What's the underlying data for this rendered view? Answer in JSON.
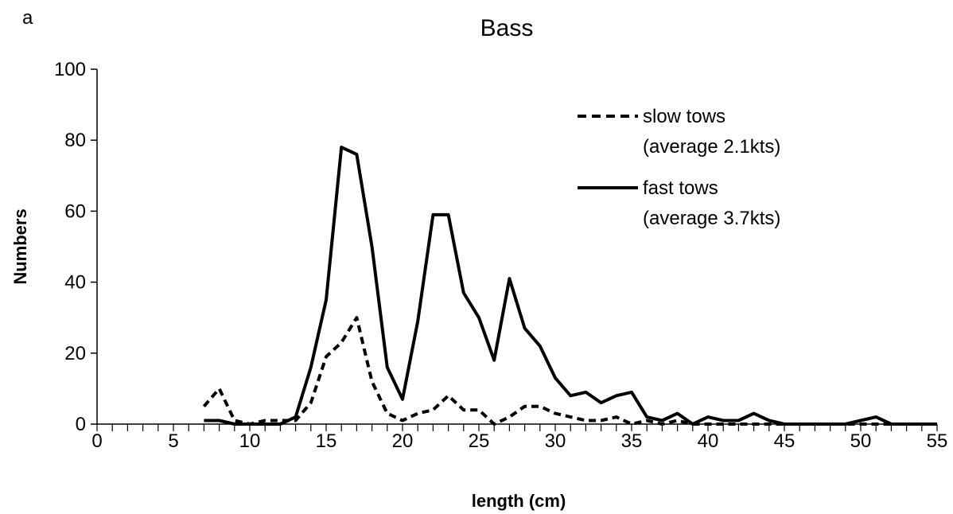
{
  "panel_label": "a",
  "chart_data": {
    "type": "line",
    "title": "Bass",
    "xlabel": "length (cm)",
    "ylabel": "Numbers",
    "xlim": [
      0,
      55
    ],
    "ylim": [
      0,
      100
    ],
    "x_ticks": [
      0,
      5,
      10,
      15,
      20,
      25,
      30,
      35,
      40,
      45,
      50,
      55
    ],
    "y_ticks": [
      0,
      20,
      40,
      60,
      80,
      100
    ],
    "grid": false,
    "legend_position": "top-right",
    "x": [
      7,
      8,
      9,
      10,
      11,
      12,
      13,
      14,
      15,
      16,
      17,
      18,
      19,
      20,
      21,
      22,
      23,
      24,
      25,
      26,
      27,
      28,
      29,
      30,
      31,
      32,
      33,
      34,
      35,
      36,
      37,
      38,
      39,
      40,
      41,
      42,
      43,
      44,
      45,
      46,
      47,
      48,
      49,
      50,
      51,
      52,
      53,
      54,
      55
    ],
    "series": [
      {
        "name_lines": [
          "slow tows",
          "(average 2.1kts)"
        ],
        "style": "dashed",
        "color": "#000000",
        "values": [
          5,
          10,
          1,
          0,
          1,
          1,
          1,
          6,
          19,
          23,
          30,
          12,
          3,
          1,
          3,
          4,
          8,
          4,
          4,
          0,
          2,
          5,
          5,
          3,
          2,
          1,
          1,
          2,
          0,
          1,
          0,
          1,
          0,
          0,
          0,
          0,
          0,
          0,
          0,
          0,
          0,
          0,
          0,
          0,
          0,
          0,
          0,
          0,
          0
        ]
      },
      {
        "name_lines": [
          "fast tows",
          "(average 3.7kts)"
        ],
        "style": "solid",
        "color": "#000000",
        "values": [
          1,
          1,
          0,
          0,
          0,
          0,
          2,
          16,
          35,
          78,
          76,
          50,
          16,
          7,
          29,
          59,
          59,
          37,
          30,
          18,
          41,
          27,
          22,
          13,
          8,
          9,
          6,
          8,
          9,
          2,
          1,
          3,
          0,
          2,
          1,
          1,
          3,
          1,
          0,
          0,
          0,
          0,
          0,
          1,
          2,
          0,
          0,
          0,
          0
        ]
      }
    ]
  }
}
